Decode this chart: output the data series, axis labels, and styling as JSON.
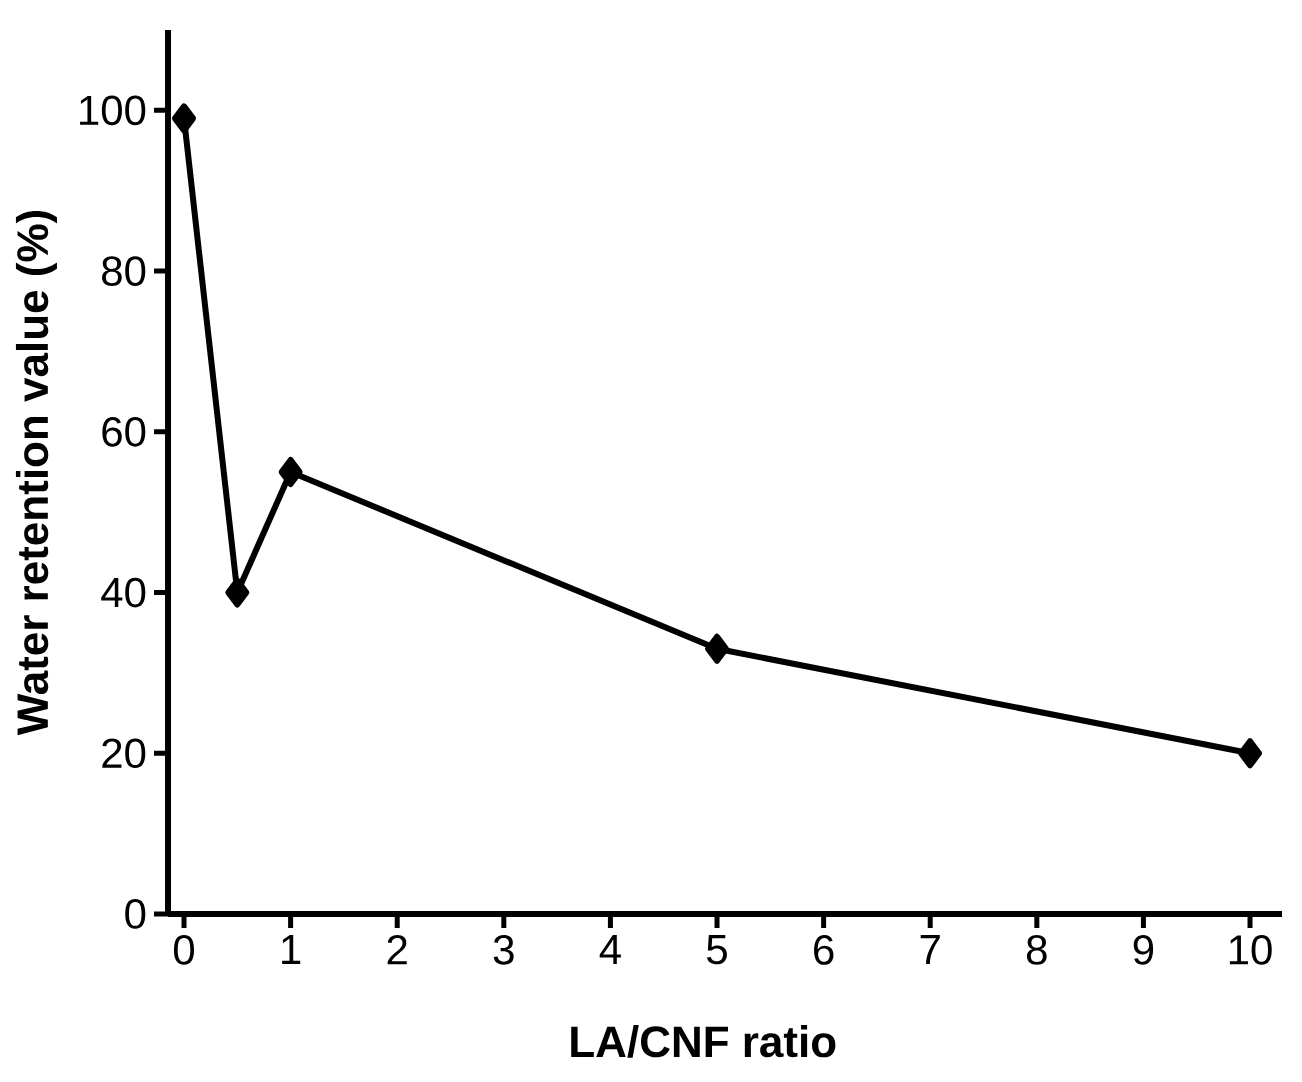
{
  "chart_data": {
    "type": "line",
    "xlabel": "LA/CNF ratio",
    "ylabel": "Water retention value (%)",
    "x": [
      0,
      0.5,
      1,
      5,
      10
    ],
    "series": [
      {
        "color": "#000000",
        "values": [
          99,
          40,
          55,
          33,
          20
        ]
      }
    ],
    "xlim": [
      -0.15,
      10.3
    ],
    "ylim": [
      0,
      110
    ],
    "xticks": [
      0,
      1,
      2,
      3,
      4,
      5,
      6,
      7,
      8,
      9,
      10
    ],
    "yticks": [
      0,
      20,
      40,
      60,
      80,
      100
    ],
    "grid": false,
    "marker": "diamond",
    "line_style": "solid"
  }
}
